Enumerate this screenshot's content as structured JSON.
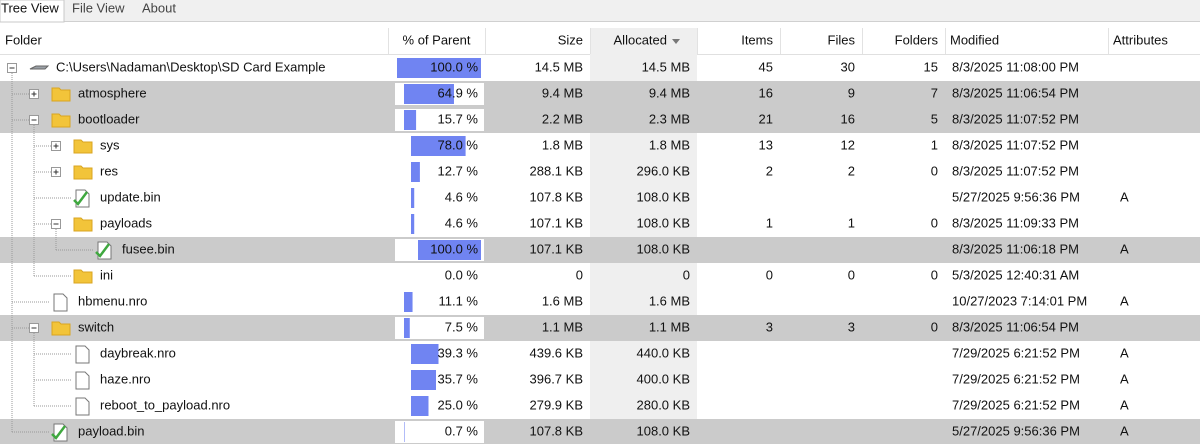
{
  "tabs": [
    "Tree View",
    "File View",
    "About"
  ],
  "columns": [
    "Folder",
    "% of Parent",
    "Size",
    "Allocated",
    "Items",
    "Files",
    "Folders",
    "Modified",
    "Attributes"
  ],
  "tree": {
    "name": "C:\\Users\\Nadaman\\Desktop\\SD Card Example",
    "icon": "drive",
    "expanded": true,
    "percent": {
      "value": 100.0,
      "label": "100.0 %"
    },
    "size": "14.5 MB",
    "allocated": "14.5 MB",
    "items": "45",
    "files": "30",
    "folders": "15",
    "modified": "8/3/2025 11:08:00 PM",
    "children": [
      {
        "name": "atmosphere",
        "icon": "folder",
        "expanded": false,
        "highlighted": true,
        "percent": {
          "value": 64.9,
          "label": "64.9 %"
        },
        "size": "9.4 MB",
        "allocated": "9.4 MB",
        "items": "16",
        "files": "9",
        "folders": "7",
        "modified": "8/3/2025 11:06:54 PM"
      },
      {
        "name": "bootloader",
        "icon": "folder",
        "expanded": true,
        "highlighted": true,
        "percent": {
          "value": 15.7,
          "label": "15.7 %"
        },
        "size": "2.2 MB",
        "allocated": "2.3 MB",
        "items": "21",
        "files": "16",
        "folders": "5",
        "modified": "8/3/2025 11:07:52 PM",
        "children": [
          {
            "name": "sys",
            "icon": "folder",
            "expanded": false,
            "percent": {
              "value": 78.0,
              "label": "78.0 %"
            },
            "size": "1.8 MB",
            "allocated": "1.8 MB",
            "items": "13",
            "files": "12",
            "folders": "1",
            "modified": "8/3/2025 11:07:52 PM"
          },
          {
            "name": "res",
            "icon": "folder",
            "expanded": false,
            "percent": {
              "value": 12.7,
              "label": "12.7 %"
            },
            "size": "288.1 KB",
            "allocated": "296.0 KB",
            "items": "2",
            "files": "2",
            "folders": "0",
            "modified": "8/3/2025 11:07:52 PM"
          },
          {
            "name": "update.bin",
            "icon": "bin",
            "percent": {
              "value": 4.6,
              "label": "4.6 %"
            },
            "size": "107.8 KB",
            "allocated": "108.0 KB",
            "modified": "5/27/2025 9:56:36 PM",
            "attributes": "A"
          },
          {
            "name": "payloads",
            "icon": "folder",
            "expanded": true,
            "percent": {
              "value": 4.6,
              "label": "4.6 %"
            },
            "size": "107.1 KB",
            "allocated": "108.0 KB",
            "items": "1",
            "files": "1",
            "folders": "0",
            "modified": "8/3/2025 11:09:33 PM",
            "children": [
              {
                "name": "fusee.bin",
                "icon": "bin",
                "highlighted": true,
                "percent": {
                  "value": 100.0,
                  "label": "100.0 %"
                },
                "size": "107.1 KB",
                "allocated": "108.0 KB",
                "modified": "8/3/2025 11:06:18 PM",
                "attributes": "A"
              }
            ]
          },
          {
            "name": "ini",
            "icon": "folder",
            "percent": {
              "value": 0.0,
              "label": "0.0 %"
            },
            "size": "0",
            "allocated": "0",
            "items": "0",
            "files": "0",
            "folders": "0",
            "modified": "5/3/2025 12:40:31 AM"
          }
        ]
      },
      {
        "name": "hbmenu.nro",
        "icon": "file",
        "percent": {
          "value": 11.1,
          "label": "11.1 %"
        },
        "size": "1.6 MB",
        "allocated": "1.6 MB",
        "modified": "10/27/2023 7:14:01 PM",
        "attributes": "A"
      },
      {
        "name": "switch",
        "icon": "folder",
        "expanded": true,
        "highlighted": true,
        "percent": {
          "value": 7.5,
          "label": "7.5 %"
        },
        "size": "1.1 MB",
        "allocated": "1.1 MB",
        "items": "3",
        "files": "3",
        "folders": "0",
        "modified": "8/3/2025 11:06:54 PM",
        "children": [
          {
            "name": "daybreak.nro",
            "icon": "file",
            "percent": {
              "value": 39.3,
              "label": "39.3 %"
            },
            "size": "439.6 KB",
            "allocated": "440.0 KB",
            "modified": "7/29/2025 6:21:52 PM",
            "attributes": "A"
          },
          {
            "name": "haze.nro",
            "icon": "file",
            "percent": {
              "value": 35.7,
              "label": "35.7 %"
            },
            "size": "396.7 KB",
            "allocated": "400.0 KB",
            "modified": "7/29/2025 6:21:52 PM",
            "attributes": "A"
          },
          {
            "name": "reboot_to_payload.nro",
            "icon": "file",
            "percent": {
              "value": 25.0,
              "label": "25.0 %"
            },
            "size": "279.9 KB",
            "allocated": "280.0 KB",
            "modified": "7/29/2025 6:21:52 PM",
            "attributes": "A"
          }
        ]
      },
      {
        "name": "payload.bin",
        "icon": "bin",
        "highlighted": true,
        "percent": {
          "value": 0.7,
          "label": "0.7 %"
        },
        "size": "107.8 KB",
        "allocated": "108.0 KB",
        "modified": "5/27/2025 9:56:36 PM",
        "attributes": "A"
      }
    ]
  }
}
